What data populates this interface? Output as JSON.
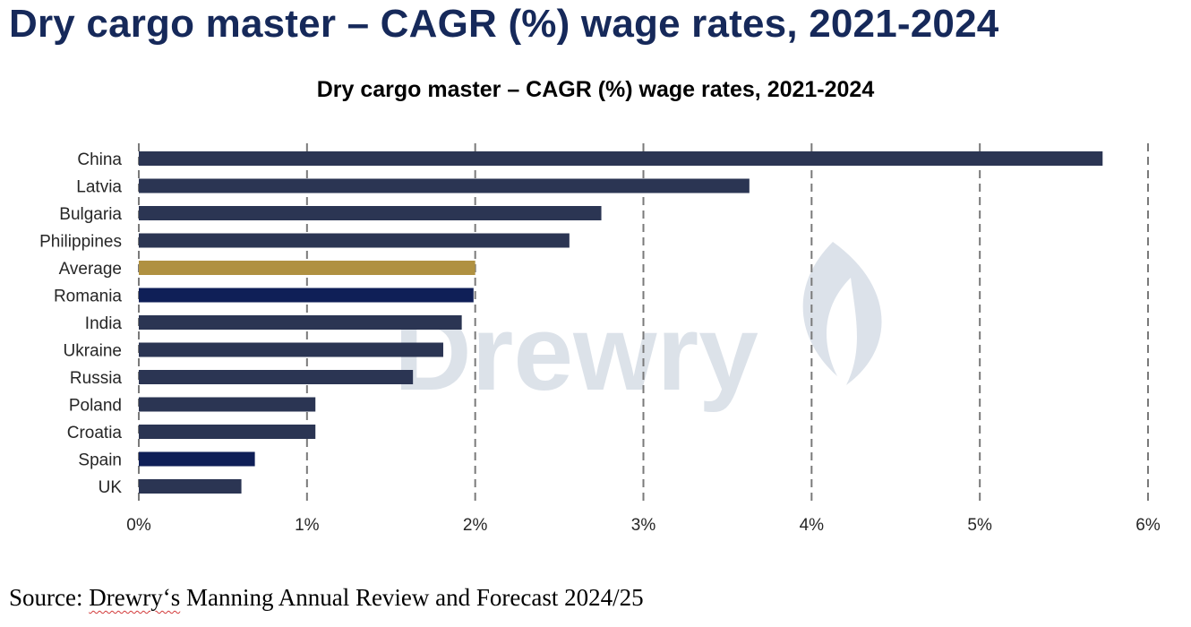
{
  "heading": "Dry cargo master – CAGR (%) wage rates, 2021-2024",
  "watermark": "Drewry",
  "source": {
    "prefix": "Source: ",
    "brand": "Drewry‘s",
    "suffix": " Manning Annual Review and Forecast 2024/25"
  },
  "colors": {
    "bar": "#2b3553",
    "average": "#b09141",
    "highlight": "#0f1f57",
    "grid": "#7a7a7a"
  },
  "chart_data": {
    "type": "bar",
    "orientation": "horizontal",
    "title": "Dry cargo master – CAGR (%) wage rates, 2021-2024",
    "xlabel": "",
    "ylabel": "",
    "xlim": [
      0,
      6
    ],
    "x_ticks": [
      0,
      1,
      2,
      3,
      4,
      5,
      6
    ],
    "x_tick_labels": [
      "0%",
      "1%",
      "2%",
      "3%",
      "4%",
      "5%",
      "6%"
    ],
    "grid": "vertical-dashed",
    "legend": "none",
    "categories": [
      "China",
      "Latvia",
      "Bulgaria",
      "Philippines",
      "Average",
      "Romania",
      "India",
      "Ukraine",
      "Russia",
      "Poland",
      "Croatia",
      "Spain",
      "UK"
    ],
    "values": [
      5.73,
      3.63,
      2.75,
      2.56,
      2.0,
      1.99,
      1.92,
      1.81,
      1.63,
      1.05,
      1.05,
      0.69,
      0.61
    ],
    "bar_colors": [
      "bar",
      "bar",
      "bar",
      "bar",
      "average",
      "highlight",
      "bar",
      "bar",
      "bar",
      "bar",
      "bar",
      "highlight",
      "bar"
    ]
  }
}
